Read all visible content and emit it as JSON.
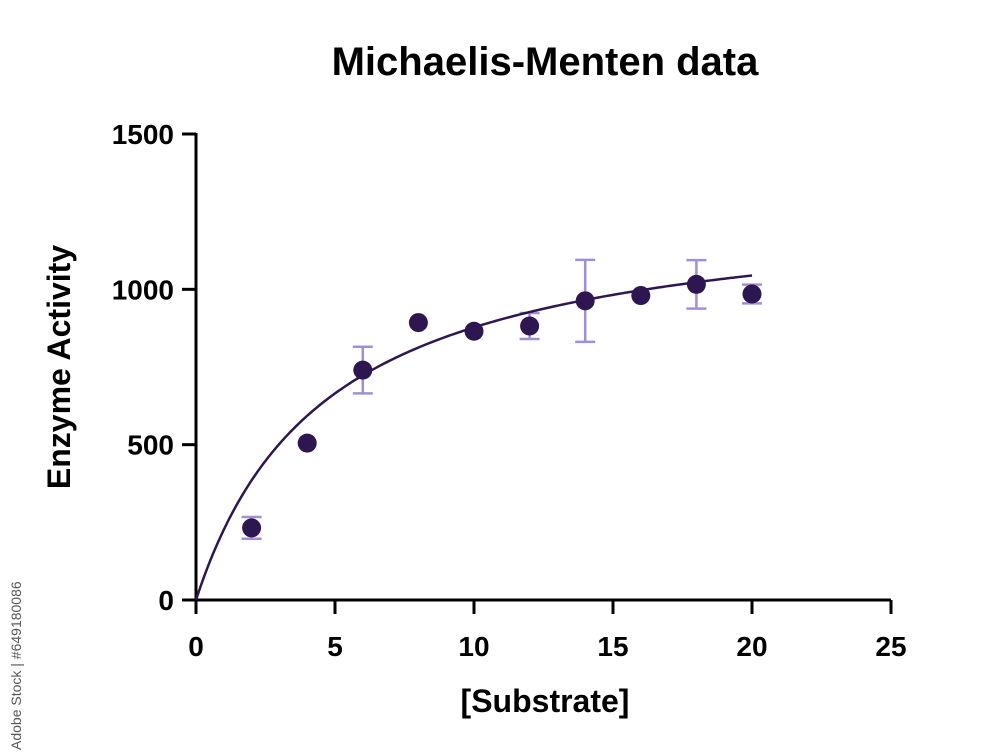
{
  "watermark": "Adobe Stock | #649180086",
  "chart_data": {
    "type": "scatter",
    "title": "Michaelis-Menten data",
    "xlabel": "[Substrate]",
    "ylabel": "Enzyme Activity",
    "xlim": [
      0,
      25
    ],
    "ylim": [
      0,
      1500
    ],
    "xticks": [
      "0",
      "5",
      "10",
      "15",
      "20",
      "25"
    ],
    "yticks": [
      "0",
      "500",
      "1000",
      "1500"
    ],
    "grid": false,
    "colors": {
      "points": "#2e1650",
      "fit": "#2e1650",
      "error_bars": "#a08fd8"
    },
    "points": [
      {
        "x": 2,
        "y": 232,
        "err": 35
      },
      {
        "x": 4,
        "y": 505,
        "err": 0
      },
      {
        "x": 6,
        "y": 740,
        "err": 75
      },
      {
        "x": 8,
        "y": 893,
        "err": 0
      },
      {
        "x": 10,
        "y": 865,
        "err": 0
      },
      {
        "x": 12,
        "y": 882,
        "err": 42
      },
      {
        "x": 14,
        "y": 963,
        "err": 132
      },
      {
        "x": 16,
        "y": 980,
        "err": 0
      },
      {
        "x": 18,
        "y": 1016,
        "err": 78
      },
      {
        "x": 20,
        "y": 985,
        "err": 30
      }
    ],
    "fit": {
      "model": "michaelis-menten",
      "vmax": 1290,
      "km": 4.7,
      "xrange": [
        0,
        20
      ]
    }
  }
}
